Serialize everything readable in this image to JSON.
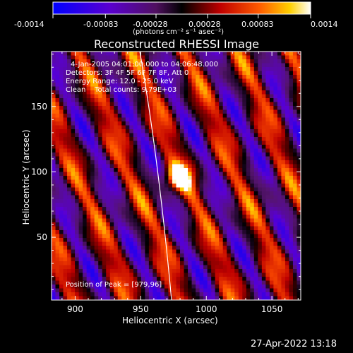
{
  "colorbar": {
    "tick_labels": [
      "-0.0014",
      "-0.00083",
      "-0.00028",
      "0.00028",
      "0.00083",
      "0.0014"
    ],
    "units_label": "(photons cm⁻² s⁻¹ asec⁻²)"
  },
  "chart_data": {
    "type": "heatmap",
    "title": "Reconstructed RHESSI Image",
    "xlabel": "Heliocentric X (arcsec)",
    "ylabel": "Heliocentric Y (arcsec)",
    "xlim": [
      882,
      1072
    ],
    "ylim": [
      2,
      192
    ],
    "xticks": [
      900,
      950,
      1000,
      1050
    ],
    "yticks": [
      50,
      100,
      150
    ],
    "color_range": [
      -0.0014,
      0.0014
    ],
    "colormap": "blue-purple-black-red-orange-yellow-white",
    "peak": {
      "x": 979,
      "y": 96
    },
    "annotations": [
      "4-Jan-2005 04:01:00.000 to 04:06:48.000",
      "Detectors: 3F 4F 5F 6F 7F 8F, Att 0",
      "Energy Range: 12.0 - 25.0 keV",
      "Clean    Total counts: 9.79E+03"
    ],
    "peak_label": "Position of Peak = [979,96]",
    "limb_curve": {
      "label": "",
      "x_at_top": 964,
      "x_at_bottom": 976
    }
  },
  "timestamp": "27-Apr-2022 13:18"
}
